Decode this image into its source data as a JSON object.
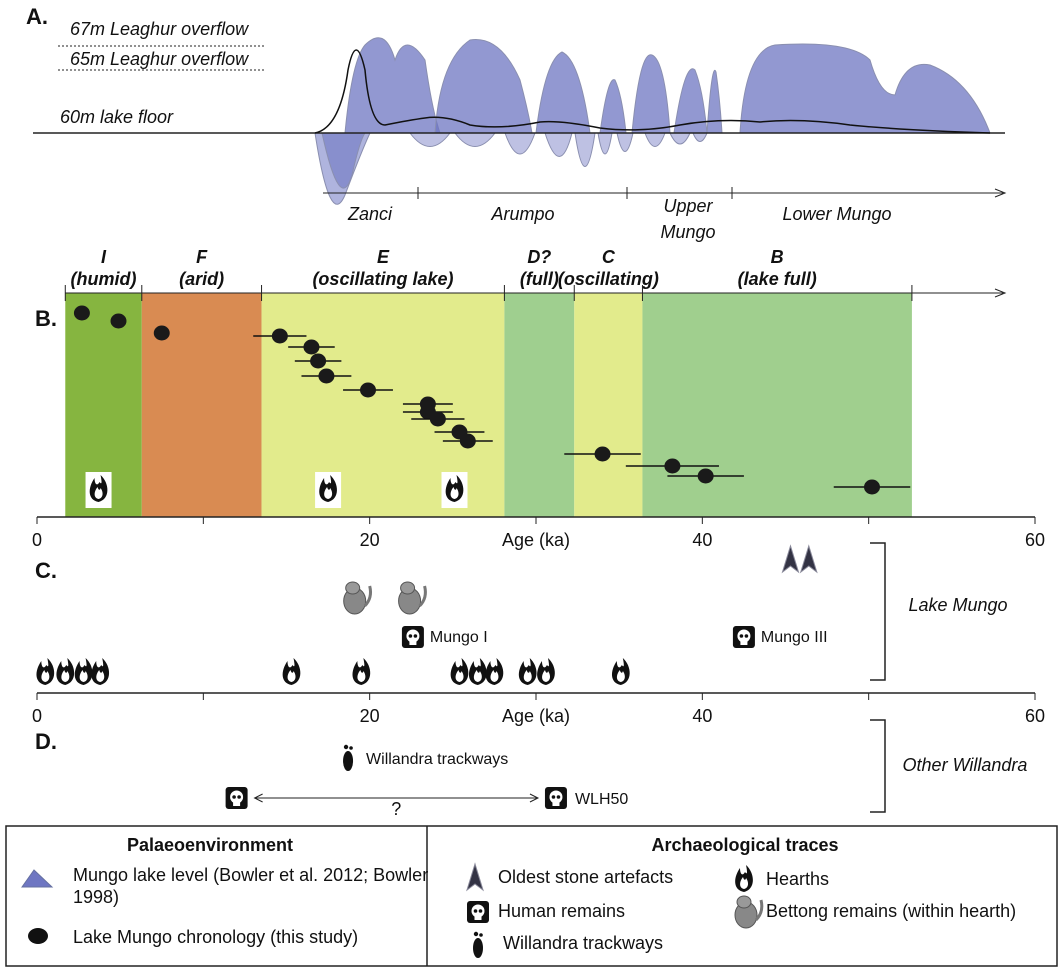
{
  "panel_a": {
    "label": "A.",
    "levels": [
      "67m Leaghur overflow",
      "65m Leaghur overflow",
      "60m lake floor"
    ],
    "periods": [
      "Zanci",
      "Arumpo",
      "Upper Mungo",
      "Lower Mungo"
    ]
  },
  "chart_data": {
    "type": "scatter",
    "panel": "B.",
    "xlabel": "Age (ka)",
    "xlim": [
      0,
      60
    ],
    "xticks": [
      0,
      20,
      40,
      60
    ],
    "xminor": [
      10,
      30,
      50
    ],
    "zones": [
      {
        "code": "I",
        "desc": "(humid)",
        "start": 1.7,
        "end": 6.3,
        "color": "#86b540"
      },
      {
        "code": "F",
        "desc": "(arid)",
        "start": 6.3,
        "end": 13.5,
        "color": "#d98b52"
      },
      {
        "code": "E",
        "desc": "(oscillating lake)",
        "start": 13.5,
        "end": 28.1,
        "color": "#e2eb8c"
      },
      {
        "code": "D?",
        "desc": "(full)",
        "start": 28.1,
        "end": 32.3,
        "color": "#9fcf8f"
      },
      {
        "code": "C",
        "desc": "(oscillating)",
        "start": 32.3,
        "end": 36.4,
        "color": "#e2eb8c"
      },
      {
        "code": "B",
        "desc": "(lake full)",
        "start": 36.4,
        "end": 52.6,
        "color": "#a0cf8e"
      }
    ],
    "x": [
      2.7,
      4.9,
      7.5,
      14.6,
      16.5,
      16.9,
      17.4,
      19.9,
      23.5,
      23.5,
      24.1,
      25.4,
      25.9,
      34.0,
      38.2,
      40.2,
      50.2
    ],
    "xerr": [
      null,
      null,
      null,
      1.6,
      1.4,
      1.4,
      1.5,
      1.5,
      1.5,
      1.5,
      1.6,
      1.5,
      1.5,
      2.3,
      2.8,
      2.3,
      2.3
    ],
    "color": "#1a1a1a",
    "hearths": [
      3.7,
      17.5,
      25.1
    ]
  },
  "panel_c": {
    "label": "C.",
    "site": "Lake Mungo",
    "stone_artefacts": [
      45.3,
      46.4
    ],
    "bettongs": [
      19.1,
      22.4
    ],
    "human_remains": [
      {
        "name": "Mungo I",
        "age": 22.6
      },
      {
        "name": "Mungo III",
        "age": 42.5
      }
    ],
    "hearths": [
      0.5,
      1.7,
      2.8,
      3.8,
      15.3,
      19.5,
      25.4,
      26.5,
      27.5,
      29.5,
      30.6,
      35.1
    ]
  },
  "panel_d": {
    "label": "D.",
    "site": "Other Willandra",
    "trackways": {
      "name": "Willandra trackways",
      "age": 18.7
    },
    "human_remains": [
      {
        "age": 12.0
      },
      {
        "name": "WLH50",
        "age": 31.2
      }
    ],
    "range_label": "?"
  },
  "legend": {
    "left_title": "Palaeoenvironment",
    "left_items": [
      "Mungo lake level (Bowler et al. 2012; Bowler 1998)",
      "Lake Mungo chronology (this study)"
    ],
    "right_title": "Archaeological traces",
    "right_items": [
      "Oldest stone artefacts",
      "Human remains",
      "Willandra trackways",
      "Hearths",
      "Bettong remains (within hearth)"
    ]
  }
}
